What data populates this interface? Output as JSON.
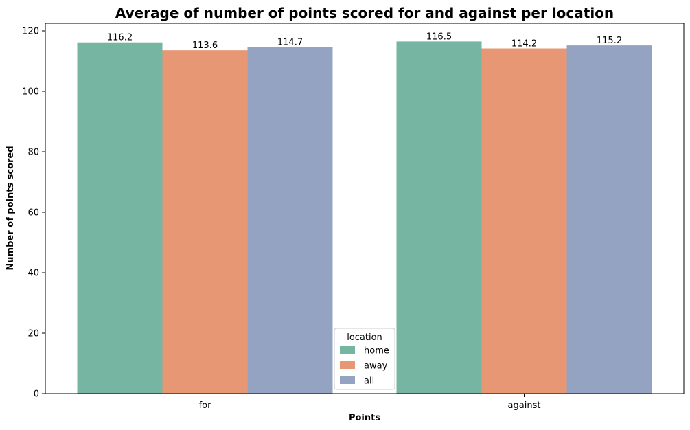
{
  "chart_data": {
    "type": "bar",
    "title": "Average of number of points scored for and against per location",
    "xlabel": "Points",
    "ylabel": "Number of points scored",
    "categories": [
      "for",
      "against"
    ],
    "series": [
      {
        "name": "home",
        "values": [
          116.2,
          116.5
        ],
        "color": "#75b5a1"
      },
      {
        "name": "away",
        "values": [
          113.6,
          114.2
        ],
        "color": "#e89775"
      },
      {
        "name": "all",
        "values": [
          114.7,
          115.2
        ],
        "color": "#94a3c2"
      }
    ],
    "ylim": [
      0,
      122.5
    ],
    "yticks": [
      0,
      20,
      40,
      60,
      80,
      100,
      120
    ],
    "legend": {
      "title": "location",
      "position": "bottom-center"
    },
    "grid": false
  }
}
